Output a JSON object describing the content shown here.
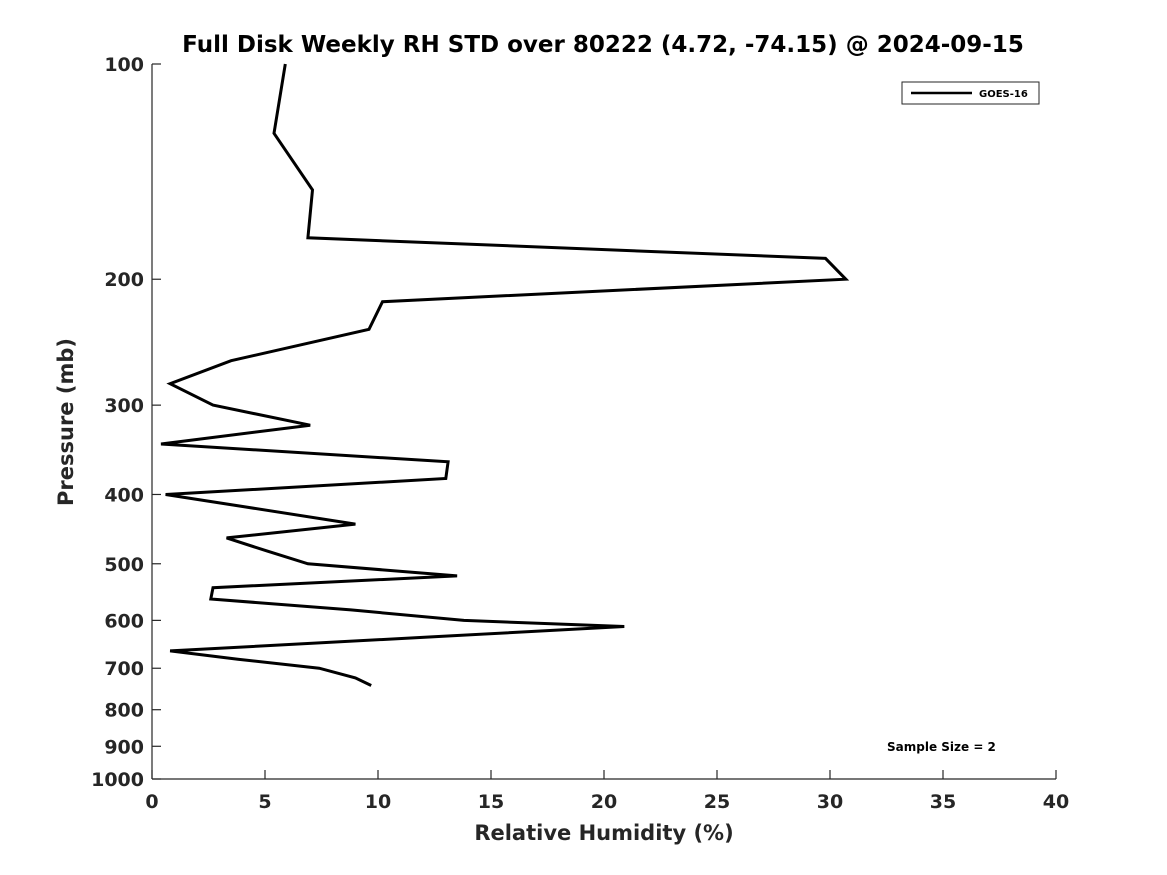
{
  "chart_data": {
    "type": "line",
    "title": "Full Disk Weekly RH STD over 80222 (4.72, -74.15) @ 2024-09-15",
    "xlabel": "Relative Humidity (%)",
    "ylabel": "Pressure (mb)",
    "xlim": [
      0,
      40
    ],
    "ylim": [
      100,
      1000
    ],
    "yscale": "log",
    "yreversed": true,
    "x_ticks": [
      0,
      5,
      10,
      15,
      20,
      25,
      30,
      35,
      40
    ],
    "y_ticks": [
      100,
      200,
      300,
      400,
      500,
      600,
      700,
      800,
      900,
      1000
    ],
    "grid": false,
    "legend_position": "top-right",
    "annotations": [
      "Sample Size = 2"
    ],
    "series": [
      {
        "name": "GOES-16",
        "color": "#000000",
        "points": [
          {
            "rh": 5.9,
            "p": 100
          },
          {
            "rh": 5.4,
            "p": 125
          },
          {
            "rh": 7.1,
            "p": 150
          },
          {
            "rh": 6.9,
            "p": 175
          },
          {
            "rh": 29.8,
            "p": 187
          },
          {
            "rh": 30.7,
            "p": 200
          },
          {
            "rh": 10.2,
            "p": 215
          },
          {
            "rh": 9.6,
            "p": 235
          },
          {
            "rh": 3.5,
            "p": 260
          },
          {
            "rh": 0.8,
            "p": 280
          },
          {
            "rh": 2.7,
            "p": 300
          },
          {
            "rh": 7.0,
            "p": 320
          },
          {
            "rh": 0.4,
            "p": 340
          },
          {
            "rh": 13.1,
            "p": 360
          },
          {
            "rh": 13.0,
            "p": 380
          },
          {
            "rh": 0.6,
            "p": 400
          },
          {
            "rh": 9.0,
            "p": 440
          },
          {
            "rh": 3.3,
            "p": 460
          },
          {
            "rh": 5.1,
            "p": 480
          },
          {
            "rh": 6.9,
            "p": 500
          },
          {
            "rh": 13.5,
            "p": 520
          },
          {
            "rh": 2.7,
            "p": 540
          },
          {
            "rh": 2.6,
            "p": 560
          },
          {
            "rh": 8.8,
            "p": 580
          },
          {
            "rh": 13.8,
            "p": 600
          },
          {
            "rh": 20.9,
            "p": 612
          },
          {
            "rh": 0.8,
            "p": 662
          },
          {
            "rh": 3.8,
            "p": 680
          },
          {
            "rh": 7.4,
            "p": 700
          },
          {
            "rh": 9.0,
            "p": 722
          },
          {
            "rh": 9.7,
            "p": 740
          }
        ]
      }
    ]
  }
}
